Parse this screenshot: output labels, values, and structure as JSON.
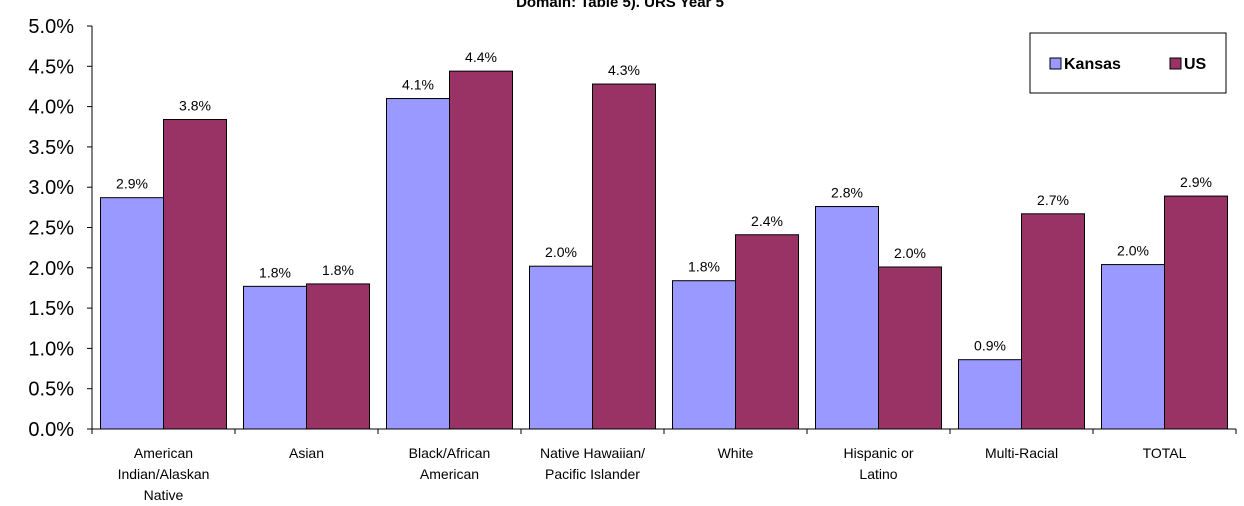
{
  "chart_data": {
    "type": "bar",
    "title": "Domain: Table 5). URS Year 5",
    "categories": [
      [
        "American",
        "Indian/Alaskan",
        "Native"
      ],
      [
        "Asian"
      ],
      [
        "Black/African",
        "American"
      ],
      [
        "Native Hawaiian/",
        "Pacific Islander"
      ],
      [
        "White"
      ],
      [
        "Hispanic or",
        "Latino"
      ],
      [
        "Multi-Racial"
      ],
      [
        "TOTAL"
      ]
    ],
    "series": [
      {
        "name": "Kansas",
        "color": "#9999ff",
        "values": [
          2.87,
          1.77,
          4.1,
          2.02,
          1.84,
          2.76,
          0.86,
          2.04
        ],
        "labels": [
          "2.9%",
          "1.8%",
          "4.1%",
          "2.0%",
          "1.8%",
          "2.8%",
          "0.9%",
          "2.0%"
        ]
      },
      {
        "name": "US",
        "color": "#993366",
        "values": [
          3.84,
          1.8,
          4.44,
          4.28,
          2.41,
          2.01,
          2.67,
          2.89
        ],
        "labels": [
          "3.8%",
          "1.8%",
          "4.4%",
          "4.3%",
          "2.4%",
          "2.0%",
          "2.7%",
          "2.9%"
        ]
      }
    ],
    "ylim": [
      0,
      5.0
    ],
    "yticks": [
      "0.0%",
      "0.5%",
      "1.0%",
      "1.5%",
      "2.0%",
      "2.5%",
      "3.0%",
      "3.5%",
      "4.0%",
      "4.5%",
      "5.0%"
    ],
    "legend_position": "top-right",
    "grid": false
  }
}
